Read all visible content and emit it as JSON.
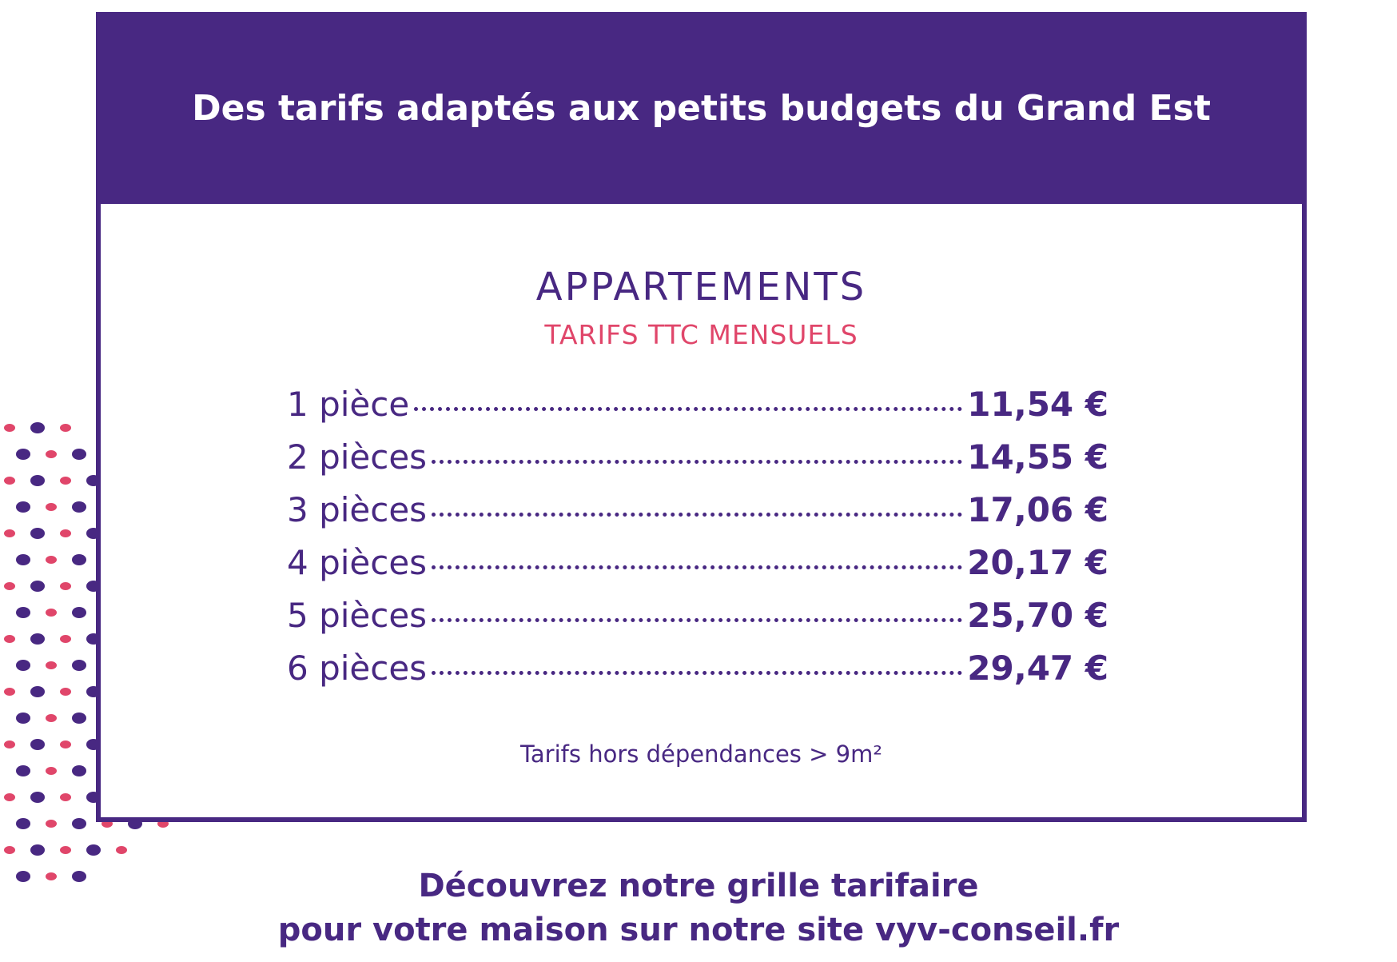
{
  "header": {
    "title": "Des tarifs adaptés aux petits budgets du Grand Est"
  },
  "section": {
    "heading": "APPARTEMENTS",
    "subheading": "TARIFS TTC MENSUELS"
  },
  "table": {
    "rows": [
      [
        "1 pièce",
        "11,54 €"
      ],
      [
        "2 pièces",
        "14,55 €"
      ],
      [
        "3 pièces",
        "17,06 €"
      ],
      [
        "4 pièces",
        "20,17 €"
      ],
      [
        "5 pièces",
        "25,70 €"
      ],
      [
        "6 pièces",
        "29,47 €"
      ]
    ]
  },
  "footnote": "Tarifs hors dépendances > 9m²",
  "cta": {
    "line1": "Découvrez notre grille tarifaire",
    "line2": "pour votre maison sur notre site vyv-conseil.fr"
  }
}
